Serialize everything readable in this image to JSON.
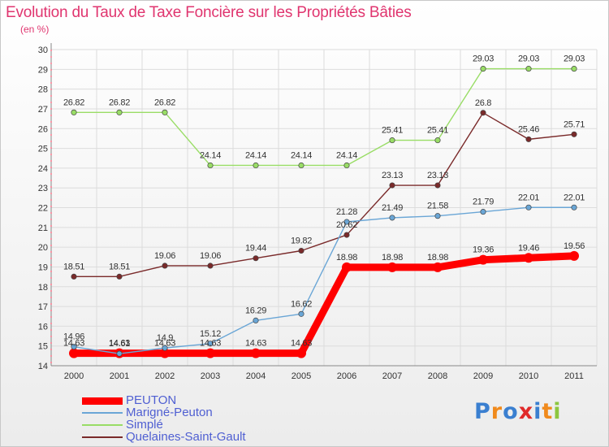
{
  "chart_data": {
    "type": "line",
    "title": "Evolution du Taux de Taxe Foncière sur les Propriétés Bâties",
    "subtitle": "(en %)",
    "xlabel": "",
    "ylabel": "(en %)",
    "categories": [
      "2000",
      "2001",
      "2002",
      "2003",
      "2004",
      "2005",
      "2006",
      "2007",
      "2008",
      "2009",
      "2010",
      "2011"
    ],
    "y_ticks": [
      "14",
      "15",
      "16",
      "17",
      "18",
      "19",
      "20",
      "21",
      "22",
      "23",
      "24",
      "25",
      "26",
      "27",
      "28",
      "29",
      "30"
    ],
    "ylim": [
      14,
      30
    ],
    "grid": true,
    "legend_position": "bottom-left",
    "series": [
      {
        "name": "PEUTON",
        "color": "#ff0000",
        "values": [
          14.63,
          14.63,
          14.63,
          14.63,
          14.63,
          14.63,
          18.98,
          18.98,
          18.98,
          19.36,
          19.46,
          19.56
        ],
        "labels": [
          "14.63",
          "14.63",
          "14.63",
          "14.63",
          "14.63",
          "14.63",
          "18.98",
          "18.98",
          "18.98",
          "19.36",
          "19.46",
          "19.56"
        ]
      },
      {
        "name": "Marigné-Peuton",
        "color": "#6aa6d6",
        "values": [
          14.96,
          14.61,
          14.9,
          15.12,
          16.29,
          16.62,
          21.28,
          21.49,
          21.58,
          21.79,
          22.01,
          22.01
        ],
        "labels": [
          "14.96",
          "14.61",
          "14.9",
          "15.12",
          "16.29",
          "16.62",
          "21.28",
          "21.49",
          "21.58",
          "21.79",
          "22.01",
          "22.01"
        ]
      },
      {
        "name": "Simplé",
        "color": "#99dd66",
        "values": [
          26.82,
          26.82,
          26.82,
          24.14,
          24.14,
          24.14,
          24.14,
          25.41,
          25.41,
          29.03,
          29.03,
          29.03
        ],
        "labels": [
          "26.82",
          "26.82",
          "26.82",
          "24.14",
          "24.14",
          "24.14",
          "24.14",
          "25.41",
          "25.41",
          "29.03",
          "29.03",
          "29.03"
        ]
      },
      {
        "name": "Quelaines-Saint-Gault",
        "color": "#7a2a2a",
        "values": [
          18.51,
          18.51,
          19.06,
          19.06,
          19.44,
          19.82,
          20.62,
          23.13,
          23.13,
          26.8,
          25.46,
          25.71
        ],
        "labels": [
          "18.51",
          "18.51",
          "19.06",
          "19.06",
          "19.44",
          "19.82",
          "20.62",
          "23.13",
          "23.13",
          "26.8",
          "25.46",
          "25.71"
        ]
      }
    ]
  },
  "logo": {
    "letters": [
      "P",
      "r",
      "o",
      "x",
      "i",
      "t",
      "i"
    ],
    "colors": [
      "#3a7fd0",
      "#f08a1c",
      "#3a7fd0",
      "#e02a2a",
      "#3a7fd0",
      "#f08a1c",
      "#8cc63f"
    ]
  }
}
